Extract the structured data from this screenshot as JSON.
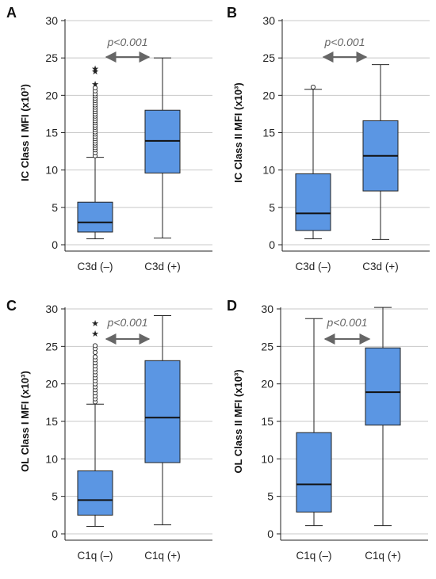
{
  "colors": {
    "box": "#5b96e3",
    "grid": "#c8c8c8",
    "axis": "#222222",
    "arrow": "#666666"
  },
  "chart_data": [
    {
      "type": "box",
      "panel": "A",
      "ylabel": "IC Class I MFI (x10³)",
      "ylim": [
        0,
        30
      ],
      "yticks": [
        0,
        5,
        10,
        15,
        20,
        25,
        30
      ],
      "grid": true,
      "categories": [
        "C3d (–)",
        "C3d (+)"
      ],
      "boxes": [
        {
          "min": 0.8,
          "q1": 1.7,
          "median": 3.0,
          "q3": 5.7,
          "max": 11.7,
          "outliers": [
            11.9,
            12.3,
            12.7,
            13.0,
            13.3,
            13.6,
            13.9,
            14.2,
            14.5,
            14.8,
            15.1,
            15.4,
            15.7,
            16.0,
            16.3,
            16.6,
            16.9,
            17.2,
            17.5,
            17.8,
            18.1,
            18.4,
            18.7,
            19.0,
            19.3,
            19.6,
            19.9,
            20.2,
            20.6,
            21.0
          ],
          "extremes": [
            21.5,
            23.2,
            23.6
          ]
        },
        {
          "min": 0.9,
          "q1": 9.6,
          "median": 13.9,
          "q3": 18.0,
          "max": 25.0,
          "outliers": [],
          "extremes": []
        }
      ],
      "annotation": "p<0.001"
    },
    {
      "type": "box",
      "panel": "B",
      "ylabel": "IC Class II MFI (x10³)",
      "ylim": [
        0,
        30
      ],
      "yticks": [
        0,
        5,
        10,
        15,
        20,
        25,
        30
      ],
      "grid": true,
      "categories": [
        "C3d (–)",
        "C3d (+)"
      ],
      "boxes": [
        {
          "min": 0.8,
          "q1": 1.9,
          "median": 4.2,
          "q3": 9.5,
          "max": 20.8,
          "outliers": [
            21.1
          ],
          "extremes": []
        },
        {
          "min": 0.7,
          "q1": 7.2,
          "median": 11.9,
          "q3": 16.6,
          "max": 24.1,
          "outliers": [],
          "extremes": []
        }
      ],
      "annotation": "p<0.001"
    },
    {
      "type": "box",
      "panel": "C",
      "ylabel": "OL Class I MFI (x10³)",
      "ylim": [
        0,
        30
      ],
      "yticks": [
        0,
        5,
        10,
        15,
        20,
        25,
        30
      ],
      "grid": true,
      "categories": [
        "C1q (–)",
        "C1q (+)"
      ],
      "boxes": [
        {
          "min": 1.0,
          "q1": 2.5,
          "median": 4.5,
          "q3": 8.4,
          "max": 17.3,
          "outliers": [
            17.6,
            18.0,
            18.4,
            18.8,
            19.2,
            19.6,
            20.0,
            20.4,
            20.8,
            21.2,
            21.6,
            22.0,
            22.4,
            22.8,
            23.2,
            23.6,
            24.2,
            24.7,
            25.1
          ],
          "extremes": [
            26.7,
            28.1
          ]
        },
        {
          "min": 1.2,
          "q1": 9.5,
          "median": 15.5,
          "q3": 23.1,
          "max": 29.1,
          "outliers": [],
          "extremes": []
        }
      ],
      "annotation": "p<0.001"
    },
    {
      "type": "box",
      "panel": "D",
      "ylabel": "OL Class II MFI (x10³)",
      "ylim": [
        0,
        30
      ],
      "yticks": [
        0,
        5,
        10,
        15,
        20,
        25,
        30
      ],
      "grid": true,
      "categories": [
        "C1q (–)",
        "C1q (+)"
      ],
      "boxes": [
        {
          "min": 1.1,
          "q1": 2.9,
          "median": 6.6,
          "q3": 13.5,
          "max": 28.7,
          "outliers": [],
          "extremes": []
        },
        {
          "min": 1.1,
          "q1": 14.5,
          "median": 18.9,
          "q3": 24.8,
          "max": 30.2,
          "outliers": [],
          "extremes": []
        }
      ],
      "annotation": "p<0.001"
    }
  ]
}
